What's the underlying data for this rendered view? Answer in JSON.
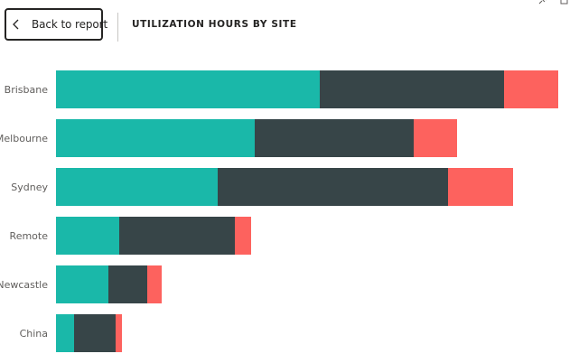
{
  "header": {
    "back_label": "Back to report",
    "title": "UTILIZATION HOURS BY SITE"
  },
  "toolbar": {
    "icons": [
      "pin-icon",
      "copy-icon",
      "filter-icon"
    ]
  },
  "colors": {
    "series_1": "#1ab8a9",
    "series_2": "#374548",
    "series_3": "#fd625e"
  },
  "chart_data": {
    "type": "bar",
    "orientation": "horizontal",
    "stacked": true,
    "categories": [
      "Brisbane",
      "Melbourne",
      "Sydney",
      "Remote",
      "Newcastle",
      "China"
    ],
    "series": [
      {
        "values": [
          292,
          220,
          179,
          70,
          58,
          20
        ]
      },
      {
        "values": [
          204,
          176,
          255,
          128,
          43,
          46
        ]
      },
      {
        "values": [
          60,
          48,
          72,
          18,
          16,
          7
        ]
      }
    ],
    "title": "UTILIZATION HOURS BY SITE",
    "xlabel": "",
    "ylabel": "",
    "xlim": [
      0,
      560
    ],
    "grid": false,
    "legend": "none"
  }
}
